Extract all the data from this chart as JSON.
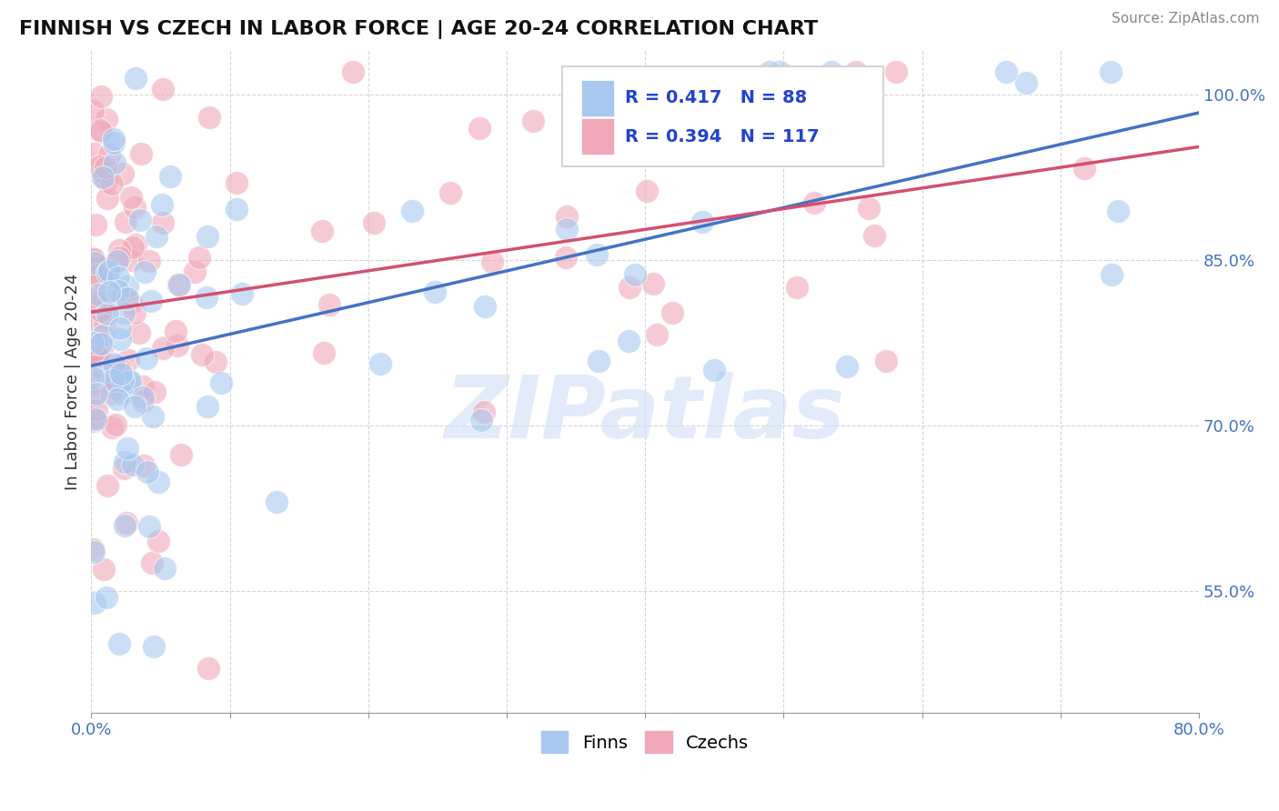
{
  "title": "FINNISH VS CZECH IN LABOR FORCE | AGE 20-24 CORRELATION CHART",
  "source": "Source: ZipAtlas.com",
  "ylabel": "In Labor Force | Age 20-24",
  "xlim": [
    0.0,
    0.8
  ],
  "ylim": [
    0.44,
    1.04
  ],
  "yticks": [
    0.55,
    0.7,
    0.85,
    1.0
  ],
  "yticklabels": [
    "55.0%",
    "70.0%",
    "85.0%",
    "100.0%"
  ],
  "finns_R": 0.417,
  "finns_N": 88,
  "czechs_R": 0.394,
  "czechs_N": 117,
  "finns_color": "#a8c8f0",
  "czechs_color": "#f0a8b8",
  "finns_line_color": "#4472c4",
  "czechs_line_color": "#d45070",
  "watermark_color": "#d0dff5",
  "title_color": "#111111",
  "source_color": "#888888",
  "tick_color": "#4472c4",
  "ylabel_color": "#333333",
  "grid_color": "#cccccc",
  "legend_border_color": "#cccccc",
  "legend_text_color": "#2244cc"
}
